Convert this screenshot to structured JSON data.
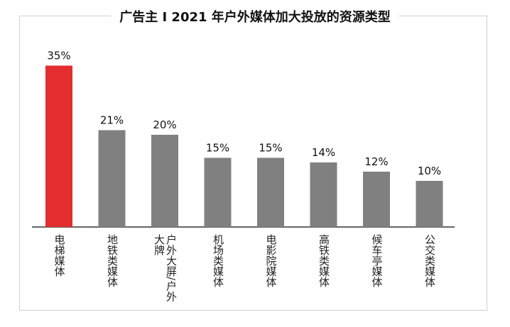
{
  "title": "广告主 I 2021 年户外媒体加大投放的资源类型",
  "colors": {
    "highlight": "#e32d2e",
    "default": "#808080",
    "axis": "#333333"
  },
  "chart_data": {
    "type": "bar",
    "title": "广告主 I 2021 年户外媒体加大投放的资源类型",
    "categories": [
      "电梯媒体",
      "地铁类媒体",
      "户外大屏/户外大牌",
      "机场类媒体",
      "电影院媒体",
      "高铁类媒体",
      "候车亭媒体",
      "公交类媒体"
    ],
    "values": [
      35,
      21,
      20,
      15,
      15,
      14,
      12,
      10
    ],
    "data_labels": [
      "35%",
      "21%",
      "20%",
      "15%",
      "15%",
      "14%",
      "12%",
      "10%"
    ],
    "highlight_index": 0,
    "ylim": [
      0,
      40
    ],
    "grid": false,
    "legend": "none"
  }
}
